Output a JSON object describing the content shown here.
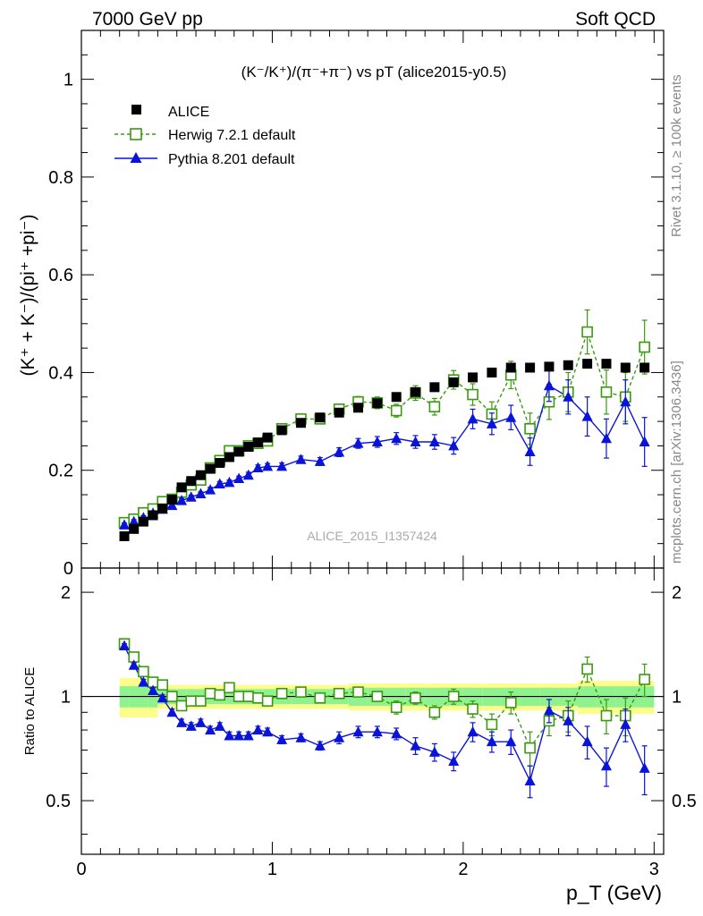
{
  "header": {
    "energy_label": "7000 GeV pp",
    "category_label": "Soft QCD",
    "plot_title": "(K⁻/K⁺)/(π⁻+π⁻) vs pT (alice2015-y0.5)",
    "watermark": "ALICE_2015_I1357424",
    "rivet_label": "Rivet 3.1.10, ≥ 100k events",
    "mcplots_label": "mcplots.cern.ch [arXiv:1306.3436]"
  },
  "axes": {
    "ylabel_main": "(K⁺ + K⁻)/(pi⁺ +pi⁻)",
    "ylabel_ratio": "Ratio to ALICE",
    "xlabel": "p_T (GeV)",
    "x_ticks": [
      "0",
      "1",
      "2",
      "3"
    ],
    "y_ticks_main": [
      "0",
      "0.2",
      "0.4",
      "0.6",
      "0.8",
      "1"
    ],
    "y_ticks_ratio": [
      "0.5",
      "1",
      "2"
    ]
  },
  "legend": {
    "items": [
      {
        "label": "ALICE",
        "color": "#000000",
        "marker": "filled-square"
      },
      {
        "label": "Herwig 7.2.1 default",
        "color": "#3a9a0f",
        "marker": "open-square"
      },
      {
        "label": "Pythia 8.201 default",
        "color": "#0a14d8",
        "marker": "filled-triangle"
      }
    ]
  },
  "chart_data": {
    "type": "scatter",
    "xlim": [
      0,
      3.05
    ],
    "ylim_main": [
      0,
      1.1
    ],
    "ylim_ratio": [
      0.35,
      2.35
    ],
    "ratio_log_scale": true,
    "x": [
      0.225,
      0.275,
      0.325,
      0.375,
      0.425,
      0.475,
      0.525,
      0.575,
      0.625,
      0.675,
      0.725,
      0.775,
      0.825,
      0.875,
      0.925,
      0.975,
      1.05,
      1.15,
      1.25,
      1.35,
      1.45,
      1.55,
      1.65,
      1.75,
      1.85,
      1.95,
      2.05,
      2.15,
      2.25,
      2.35,
      2.45,
      2.55,
      2.65,
      2.75,
      2.85,
      2.95
    ],
    "series": [
      {
        "name": "ALICE",
        "color": "#000000",
        "values": [
          0.065,
          0.08,
          0.095,
          0.108,
          0.122,
          0.14,
          0.165,
          0.178,
          0.19,
          0.203,
          0.215,
          0.227,
          0.238,
          0.248,
          0.257,
          0.267,
          0.282,
          0.297,
          0.308,
          0.318,
          0.328,
          0.337,
          0.35,
          0.36,
          0.37,
          0.38,
          0.39,
          0.4,
          0.41,
          0.41,
          0.412,
          0.415,
          0.418,
          0.418,
          0.41,
          0.41
        ],
        "band_inner": [
          0.07,
          0.07,
          0.07,
          0.07,
          0.05,
          0.05,
          0.05,
          0.05,
          0.05,
          0.05,
          0.05,
          0.05,
          0.05,
          0.05,
          0.05,
          0.05,
          0.05,
          0.05,
          0.05,
          0.05,
          0.06,
          0.06,
          0.06,
          0.06,
          0.06,
          0.06,
          0.06,
          0.06,
          0.06,
          0.06,
          0.06,
          0.06,
          0.07,
          0.07,
          0.07,
          0.07
        ],
        "band_outer": [
          0.13,
          0.13,
          0.13,
          0.13,
          0.08,
          0.08,
          0.08,
          0.08,
          0.08,
          0.08,
          0.08,
          0.08,
          0.08,
          0.08,
          0.08,
          0.08,
          0.08,
          0.08,
          0.08,
          0.08,
          0.09,
          0.09,
          0.09,
          0.09,
          0.09,
          0.09,
          0.09,
          0.09,
          0.09,
          0.09,
          0.09,
          0.09,
          0.11,
          0.11,
          0.11,
          0.11
        ]
      },
      {
        "name": "Herwig 7.2.1 default",
        "color": "#3a9a0f",
        "values": [
          0.093,
          0.1,
          0.113,
          0.121,
          0.136,
          0.141,
          0.155,
          0.17,
          0.18,
          0.205,
          0.22,
          0.24,
          0.24,
          0.25,
          0.255,
          0.26,
          0.285,
          0.305,
          0.305,
          0.325,
          0.34,
          0.338,
          0.322,
          0.358,
          0.33,
          0.385,
          0.355,
          0.315,
          0.395,
          0.285,
          0.34,
          0.36,
          0.483,
          0.36,
          0.35,
          0.452
        ],
        "errors": [
          0.005,
          0.005,
          0.005,
          0.005,
          0.005,
          0.005,
          0.005,
          0.005,
          0.005,
          0.005,
          0.006,
          0.006,
          0.006,
          0.007,
          0.007,
          0.007,
          0.008,
          0.008,
          0.009,
          0.01,
          0.011,
          0.012,
          0.013,
          0.015,
          0.017,
          0.019,
          0.022,
          0.025,
          0.028,
          0.032,
          0.036,
          0.04,
          0.045,
          0.045,
          0.05,
          0.055
        ],
        "ratio": [
          1.42,
          1.3,
          1.18,
          1.1,
          1.08,
          1.0,
          0.94,
          0.97,
          0.97,
          1.02,
          1.01,
          1.06,
          1.0,
          1.0,
          0.99,
          0.97,
          1.02,
          1.03,
          0.99,
          1.02,
          1.03,
          1.0,
          0.93,
          0.99,
          0.9,
          1.0,
          0.92,
          0.83,
          0.96,
          0.71,
          0.85,
          0.88,
          1.2,
          0.88,
          0.88,
          1.12
        ],
        "ratio_errors": [
          0.02,
          0.02,
          0.02,
          0.02,
          0.02,
          0.02,
          0.02,
          0.02,
          0.02,
          0.02,
          0.02,
          0.02,
          0.02,
          0.02,
          0.02,
          0.02,
          0.03,
          0.03,
          0.03,
          0.03,
          0.03,
          0.03,
          0.04,
          0.04,
          0.04,
          0.05,
          0.05,
          0.06,
          0.07,
          0.08,
          0.08,
          0.09,
          0.1,
          0.1,
          0.11,
          0.12
        ]
      },
      {
        "name": "Pythia 8.201 default",
        "color": "#0a14d8",
        "values": [
          0.088,
          0.095,
          0.103,
          0.112,
          0.12,
          0.128,
          0.138,
          0.145,
          0.152,
          0.16,
          0.172,
          0.175,
          0.183,
          0.19,
          0.205,
          0.208,
          0.208,
          0.222,
          0.218,
          0.237,
          0.255,
          0.258,
          0.265,
          0.258,
          0.258,
          0.25,
          0.305,
          0.295,
          0.308,
          0.238,
          0.373,
          0.35,
          0.31,
          0.265,
          0.34,
          0.258
        ],
        "errors": [
          0.004,
          0.004,
          0.004,
          0.004,
          0.004,
          0.004,
          0.004,
          0.004,
          0.004,
          0.005,
          0.005,
          0.005,
          0.005,
          0.006,
          0.006,
          0.006,
          0.007,
          0.007,
          0.008,
          0.009,
          0.01,
          0.011,
          0.012,
          0.013,
          0.015,
          0.017,
          0.02,
          0.022,
          0.025,
          0.028,
          0.032,
          0.035,
          0.04,
          0.04,
          0.045,
          0.05
        ],
        "ratio": [
          1.4,
          1.23,
          1.1,
          1.04,
          0.99,
          0.9,
          0.84,
          0.82,
          0.84,
          0.8,
          0.82,
          0.77,
          0.77,
          0.77,
          0.8,
          0.79,
          0.75,
          0.76,
          0.72,
          0.76,
          0.79,
          0.79,
          0.78,
          0.72,
          0.69,
          0.65,
          0.79,
          0.74,
          0.74,
          0.57,
          0.91,
          0.85,
          0.74,
          0.63,
          0.83,
          0.62
        ],
        "ratio_errors": [
          0.02,
          0.02,
          0.02,
          0.02,
          0.02,
          0.02,
          0.02,
          0.02,
          0.02,
          0.02,
          0.02,
          0.02,
          0.02,
          0.02,
          0.02,
          0.02,
          0.02,
          0.02,
          0.02,
          0.03,
          0.03,
          0.03,
          0.03,
          0.04,
          0.04,
          0.04,
          0.05,
          0.05,
          0.06,
          0.06,
          0.07,
          0.08,
          0.08,
          0.08,
          0.09,
          0.1
        ]
      }
    ]
  }
}
